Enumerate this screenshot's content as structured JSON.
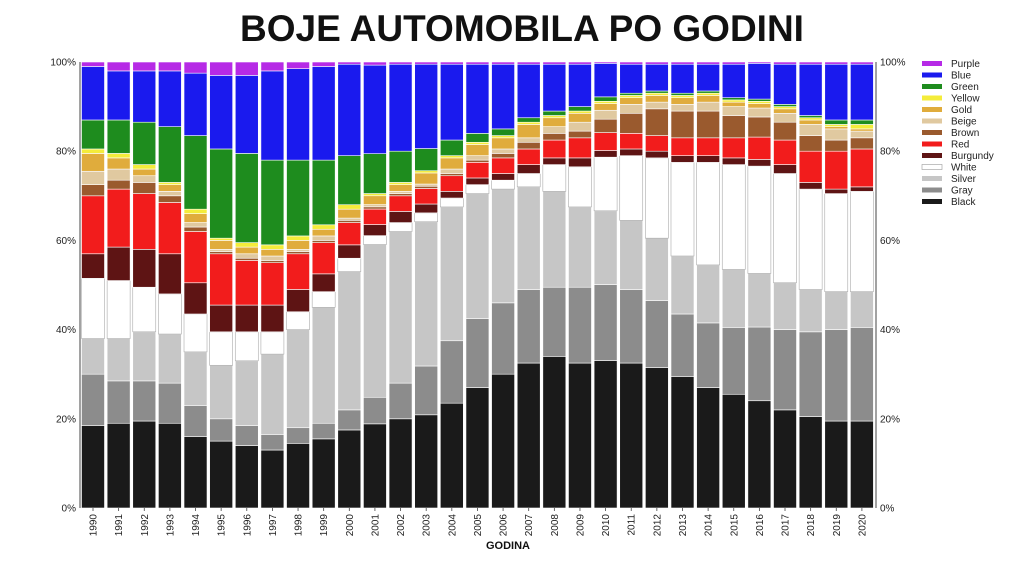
{
  "chart_data": {
    "type": "bar",
    "stacked": true,
    "normalized": true,
    "title": "BOJE AUTOMOBILA PO GODINI",
    "xlabel": "GODINA",
    "ylabel": "",
    "ylim": [
      0,
      100
    ],
    "yticks": [
      "0%",
      "20%",
      "40%",
      "60%",
      "80%",
      "100%"
    ],
    "grid": false,
    "legend_position": "right",
    "categories": [
      "1990",
      "1991",
      "1992",
      "1993",
      "1994",
      "1995",
      "1996",
      "1997",
      "1998",
      "1999",
      "2000",
      "2001",
      "2002",
      "2003",
      "2004",
      "2005",
      "2006",
      "2007",
      "2008",
      "2009",
      "2010",
      "2011",
      "2012",
      "2013",
      "2014",
      "2015",
      "2016",
      "2017",
      "2018",
      "2019",
      "2020"
    ],
    "series": [
      {
        "name": "Black",
        "color": "#1a1a1a",
        "values": [
          18.5,
          19,
          19.5,
          19,
          16,
          15,
          14,
          13,
          14.5,
          15.5,
          17.5,
          19,
          20,
          21,
          23.5,
          27,
          30,
          32.5,
          34,
          32.5,
          33,
          32.5,
          31.5,
          29.5,
          27,
          25.5,
          24,
          22,
          20.5,
          19.5,
          19.5
        ]
      },
      {
        "name": "Gray",
        "color": "#8c8c8c",
        "values": [
          11.5,
          9.5,
          9,
          9,
          7,
          5,
          4.5,
          3.5,
          3.5,
          3.5,
          4.5,
          6,
          8,
          11,
          14,
          15.5,
          16,
          16.5,
          15.5,
          17,
          17,
          16.5,
          15,
          14,
          14.5,
          15,
          16.5,
          18,
          19,
          20.5,
          21
        ]
      },
      {
        "name": "Silver",
        "color": "#c6c6c6",
        "values": [
          8,
          9.5,
          11,
          11,
          12,
          12,
          14.5,
          18,
          22,
          26,
          31,
          34.5,
          34,
          32.5,
          30,
          28,
          25.5,
          23,
          21.5,
          18,
          16.5,
          15.5,
          14,
          13,
          13,
          13,
          12,
          10.5,
          9.5,
          8.5,
          8
        ]
      },
      {
        "name": "White",
        "color": "#ffffff",
        "values": [
          13.5,
          13,
          10,
          9,
          8.5,
          7.5,
          6.5,
          5,
          4,
          3.5,
          3,
          2,
          2,
          2,
          2,
          2,
          2,
          3,
          6,
          9,
          12,
          14.5,
          18,
          21,
          23,
          23.5,
          24,
          24.5,
          22.5,
          22,
          22.5
        ]
      },
      {
        "name": "Burgundy",
        "color": "#5e1414",
        "values": [
          5.5,
          7.5,
          8.5,
          9,
          7,
          6,
          6,
          6,
          5,
          4,
          3,
          2.5,
          2.5,
          2,
          1.5,
          1.5,
          1.5,
          2,
          1.5,
          2,
          1.5,
          1.5,
          1.5,
          1.5,
          1.5,
          1.5,
          1.5,
          2,
          1.5,
          1,
          1
        ]
      },
      {
        "name": "Red",
        "color": "#f21c1c",
        "values": [
          13,
          13,
          12.5,
          11.5,
          11.5,
          11.5,
          10,
          9.5,
          8,
          7,
          5,
          3.5,
          3.5,
          3.5,
          3.5,
          3.5,
          3.5,
          3.5,
          4,
          4.5,
          4,
          3.5,
          3.5,
          4,
          4,
          4.5,
          5,
          5.5,
          7,
          8.5,
          8.5
        ]
      },
      {
        "name": "Brown",
        "color": "#9a5a2e",
        "values": [
          2.5,
          2,
          2.5,
          1.5,
          1,
          0.5,
          0.5,
          0.5,
          0.5,
          0.5,
          0.5,
          0.5,
          0.5,
          0.5,
          0.5,
          0.5,
          1,
          1.5,
          1.5,
          1.5,
          3,
          4.5,
          6,
          6,
          6,
          5,
          4.5,
          4,
          3.5,
          2.5,
          2.5
        ]
      },
      {
        "name": "Beige",
        "color": "#e0c9a0",
        "values": [
          3,
          2.5,
          1.5,
          1,
          1,
          0.5,
          1,
          1,
          0.5,
          1,
          0.5,
          0.5,
          0.5,
          0.5,
          1,
          1,
          1,
          1,
          1.5,
          2,
          2,
          2,
          1.5,
          1.5,
          2,
          2,
          2,
          2,
          2.5,
          2.5,
          1.5
        ]
      },
      {
        "name": "Gold",
        "color": "#e0ac3c",
        "values": [
          4,
          2.5,
          1.5,
          1.5,
          2,
          2,
          1.5,
          1.5,
          2,
          1.5,
          2,
          2,
          1.5,
          2.5,
          2.5,
          2.5,
          2.5,
          3,
          2,
          2,
          1.5,
          1.5,
          1.5,
          1.5,
          1.5,
          1,
          1,
          1,
          1,
          0.5,
          0.5
        ]
      },
      {
        "name": "Yellow",
        "color": "#f4ec3a",
        "values": [
          1,
          1,
          1,
          0.5,
          1,
          0.5,
          1,
          1,
          1,
          1,
          1,
          0.5,
          0.5,
          0.5,
          0.5,
          0.5,
          0.5,
          0.5,
          0.5,
          0.5,
          0.5,
          0.5,
          0.5,
          0.5,
          0.5,
          0.5,
          0.5,
          0.5,
          0.5,
          0.5,
          1
        ]
      },
      {
        "name": "Green",
        "color": "#1e8c1e",
        "values": [
          6.5,
          7.5,
          9.5,
          12.5,
          16.5,
          20,
          20,
          19,
          17,
          14.5,
          11,
          9,
          7,
          5,
          3.5,
          2,
          1.5,
          1,
          1,
          1,
          1,
          0.5,
          0.5,
          0.5,
          0.5,
          0.5,
          0.5,
          0.5,
          0.5,
          1,
          1
        ]
      },
      {
        "name": "Blue",
        "color": "#1a1aee",
        "values": [
          12,
          11,
          11.5,
          12.5,
          14,
          16.5,
          17.5,
          20,
          20.5,
          21,
          20.5,
          20,
          19.5,
          19,
          17,
          15.5,
          14.5,
          12,
          10.5,
          9.5,
          7.5,
          6.5,
          6,
          6.5,
          6,
          7.5,
          8,
          9,
          11.5,
          12.5,
          12.5
        ]
      },
      {
        "name": "Purple",
        "color": "#b62ae6",
        "values": [
          1,
          2,
          2,
          2,
          2.5,
          3,
          3,
          2,
          1.5,
          1,
          0.5,
          0.7,
          0.5,
          0.5,
          0.5,
          0.5,
          0.5,
          0.5,
          0.5,
          0.5,
          0.3,
          0.5,
          0.5,
          0.5,
          0.5,
          0.5,
          0.3,
          0.5,
          0.5,
          0.5,
          0.5
        ]
      }
    ]
  }
}
